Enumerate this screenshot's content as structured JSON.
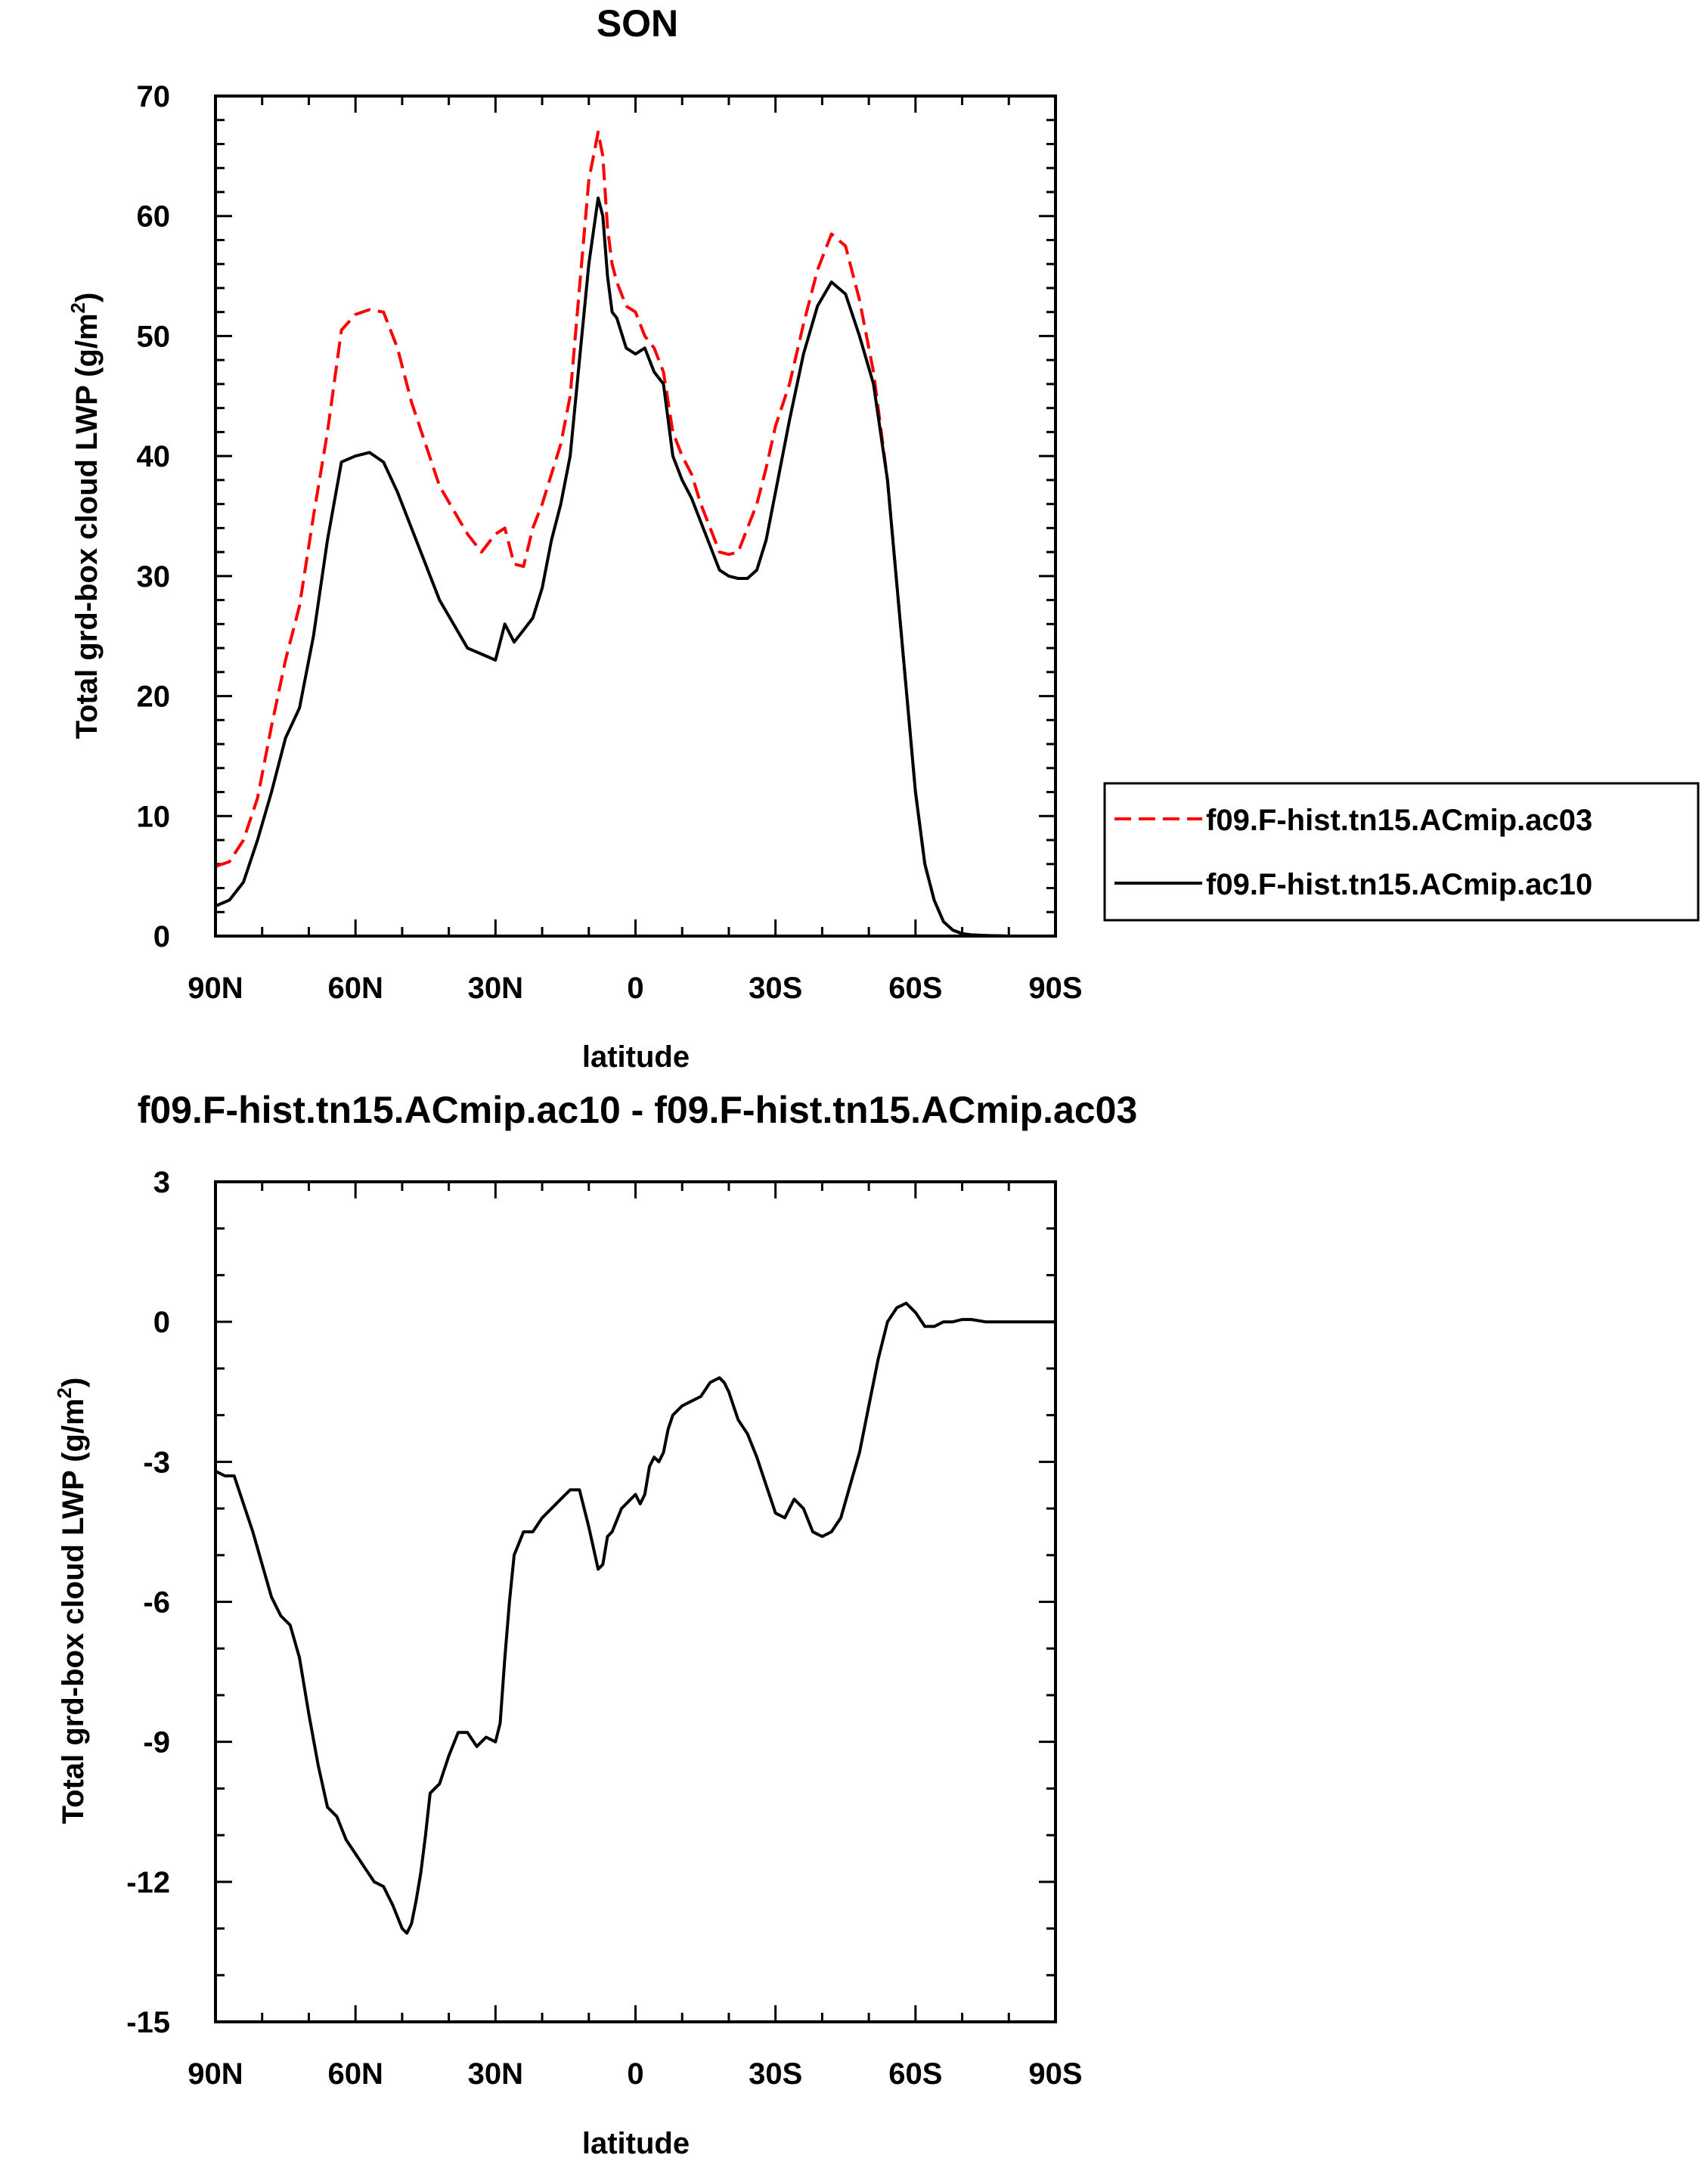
{
  "chart_data": [
    {
      "type": "line",
      "title": "SON",
      "xlabel": "latitude",
      "ylabel": "Total grd-box cloud LWP (g/m2)",
      "ylabel_text": "Total grd-box cloud LWP (g/m",
      "ylabel_sup": "2",
      "ylabel_close": ")",
      "xlim": [
        90,
        -90
      ],
      "ylim": [
        0,
        70
      ],
      "xticks": [
        90,
        60,
        30,
        0,
        -30,
        -60,
        -90
      ],
      "xticklabels": [
        "90N",
        "60N",
        "30N",
        "0",
        "30S",
        "60S",
        "90S"
      ],
      "yticks": [
        0,
        10,
        20,
        30,
        40,
        50,
        60,
        70
      ],
      "yticklabels": [
        "0",
        "10",
        "20",
        "30",
        "40",
        "50",
        "60",
        "70"
      ],
      "legend_position": "right",
      "series": [
        {
          "name": "f09.F-hist.tn15.ACmip.ac03",
          "color": "#ff0000",
          "dash": "dashed",
          "x": [
            90,
            87,
            84,
            81,
            78,
            75,
            72,
            69,
            66,
            63,
            60,
            57,
            54,
            51,
            48,
            45,
            42,
            39,
            36,
            33,
            30,
            28,
            26,
            24,
            22,
            20,
            18,
            16,
            14,
            12,
            10,
            8,
            7,
            6,
            5,
            4,
            2,
            0,
            -2,
            -4,
            -6,
            -8,
            -10,
            -12,
            -14,
            -16,
            -18,
            -20,
            -22,
            -24,
            -26,
            -28,
            -30,
            -33,
            -36,
            -39,
            -42,
            -45,
            -48,
            -51,
            -54,
            -57,
            -60,
            -62,
            -64,
            -66,
            -68,
            -70,
            -72,
            -75,
            -80,
            -85,
            -90
          ],
          "y": [
            5.8,
            6.2,
            8.0,
            11.5,
            17.5,
            23.0,
            27.5,
            35.0,
            42.0,
            50.5,
            51.8,
            52.2,
            52.0,
            49.0,
            44.5,
            41.0,
            37.5,
            35.5,
            33.5,
            32.0,
            33.5,
            34.0,
            31.0,
            30.8,
            34.0,
            36.0,
            38.5,
            41.0,
            45.0,
            54.0,
            63.0,
            67.0,
            65.0,
            59.0,
            56.0,
            54.5,
            52.5,
            52.0,
            50.0,
            49.0,
            47.0,
            42.0,
            40.0,
            38.5,
            36.0,
            34.0,
            32.0,
            31.8,
            32.0,
            34.0,
            36.0,
            39.0,
            42.5,
            46.0,
            51.0,
            55.5,
            58.5,
            57.5,
            53.0,
            47.0,
            38.0,
            25.0,
            12.0,
            6.0,
            3.0,
            1.2,
            0.5,
            0.2,
            0.1,
            0.05,
            0.0,
            0.0,
            0.0
          ]
        },
        {
          "name": "f09.F-hist.tn15.ACmip.ac10",
          "color": "#000000",
          "dash": "solid",
          "x": [
            90,
            87,
            84,
            81,
            78,
            75,
            72,
            69,
            66,
            63,
            60,
            57,
            54,
            51,
            48,
            45,
            42,
            39,
            36,
            33,
            30,
            28,
            26,
            24,
            22,
            20,
            18,
            16,
            14,
            12,
            10,
            8,
            7,
            6,
            5,
            4,
            2,
            0,
            -2,
            -4,
            -6,
            -8,
            -10,
            -12,
            -14,
            -16,
            -18,
            -20,
            -22,
            -24,
            -26,
            -28,
            -30,
            -33,
            -36,
            -39,
            -42,
            -45,
            -48,
            -51,
            -54,
            -57,
            -60,
            -62,
            -64,
            -66,
            -68,
            -70,
            -72,
            -75,
            -80,
            -85,
            -90
          ],
          "y": [
            2.5,
            3.0,
            4.5,
            8.0,
            12.0,
            16.5,
            19.0,
            25.0,
            33.0,
            39.5,
            40.0,
            40.3,
            39.5,
            37.0,
            34.0,
            31.0,
            28.0,
            26.0,
            24.0,
            23.5,
            23.0,
            26.0,
            24.5,
            25.5,
            26.5,
            29.0,
            33.0,
            36.0,
            40.0,
            48.0,
            56.0,
            61.5,
            60.0,
            55.0,
            52.0,
            51.5,
            49.0,
            48.5,
            49.0,
            47.0,
            46.0,
            40.0,
            38.0,
            36.5,
            34.5,
            32.5,
            30.5,
            30.0,
            29.8,
            29.8,
            30.5,
            33.0,
            37.0,
            43.0,
            48.5,
            52.5,
            54.5,
            53.5,
            50.0,
            46.0,
            38.0,
            25.0,
            12.0,
            6.0,
            3.0,
            1.2,
            0.5,
            0.2,
            0.1,
            0.05,
            0.0,
            0.0,
            0.0
          ]
        }
      ]
    },
    {
      "type": "line",
      "title": "f09.F-hist.tn15.ACmip.ac10 - f09.F-hist.tn15.ACmip.ac03",
      "xlabel": "latitude",
      "ylabel": "Total grd-box cloud LWP (g/m2)",
      "ylabel_text": "Total grd-box cloud LWP (g/m",
      "ylabel_sup": "2",
      "ylabel_close": ")",
      "xlim": [
        90,
        -90
      ],
      "ylim": [
        -15,
        3
      ],
      "xticks": [
        90,
        60,
        30,
        0,
        -30,
        -60,
        -90
      ],
      "xticklabels": [
        "90N",
        "60N",
        "30N",
        "0",
        "30S",
        "60S",
        "90S"
      ],
      "yticks": [
        3,
        0,
        -3,
        -6,
        -9,
        -12,
        -15
      ],
      "yticklabels": [
        "3",
        "0",
        "-3",
        "-6",
        "-9",
        "-12",
        "-15"
      ],
      "series": [
        {
          "color": "#000000",
          "dash": "solid",
          "x": [
            90,
            88,
            86,
            84,
            82,
            80,
            78,
            76,
            74,
            72,
            70,
            68,
            66,
            64,
            62,
            60,
            58,
            56,
            54,
            52,
            50,
            49,
            48,
            47,
            46,
            45,
            44,
            42,
            40,
            38,
            36,
            34,
            32,
            30,
            29,
            28,
            27,
            26,
            24,
            22,
            20,
            18,
            16,
            14,
            12,
            10,
            8,
            7,
            6,
            5,
            3,
            1,
            0,
            -1,
            -2,
            -3,
            -4,
            -5,
            -6,
            -7,
            -8,
            -10,
            -12,
            -14,
            -16,
            -18,
            -19,
            -20,
            -22,
            -24,
            -26,
            -28,
            -30,
            -32,
            -34,
            -36,
            -38,
            -40,
            -42,
            -44,
            -46,
            -48,
            -50,
            -52,
            -54,
            -56,
            -58,
            -60,
            -62,
            -64,
            -66,
            -68,
            -70,
            -72,
            -75,
            -80,
            -85,
            -90
          ],
          "y": [
            -3.2,
            -3.3,
            -3.3,
            -3.9,
            -4.5,
            -5.2,
            -5.9,
            -6.3,
            -6.5,
            -7.2,
            -8.4,
            -9.5,
            -10.4,
            -10.6,
            -11.1,
            -11.4,
            -11.7,
            -12.0,
            -12.1,
            -12.5,
            -13.0,
            -13.1,
            -12.9,
            -12.4,
            -11.8,
            -11.0,
            -10.1,
            -9.9,
            -9.3,
            -8.8,
            -8.8,
            -9.1,
            -8.9,
            -9.0,
            -8.6,
            -7.2,
            -6.0,
            -5.0,
            -4.5,
            -4.5,
            -4.2,
            -4.0,
            -3.8,
            -3.6,
            -3.6,
            -4.4,
            -5.3,
            -5.2,
            -4.6,
            -4.5,
            -4.0,
            -3.8,
            -3.7,
            -3.9,
            -3.7,
            -3.1,
            -2.9,
            -3.0,
            -2.8,
            -2.3,
            -2.0,
            -1.8,
            -1.7,
            -1.6,
            -1.3,
            -1.2,
            -1.3,
            -1.5,
            -2.1,
            -2.4,
            -2.9,
            -3.5,
            -4.1,
            -4.2,
            -3.8,
            -4.0,
            -4.5,
            -4.6,
            -4.5,
            -4.2,
            -3.5,
            -2.8,
            -1.8,
            -0.8,
            0.0,
            0.3,
            0.4,
            0.2,
            -0.1,
            -0.1,
            0.0,
            0.0,
            0.05,
            0.05,
            0.0,
            0.0,
            0.0,
            0.0
          ]
        }
      ]
    }
  ]
}
